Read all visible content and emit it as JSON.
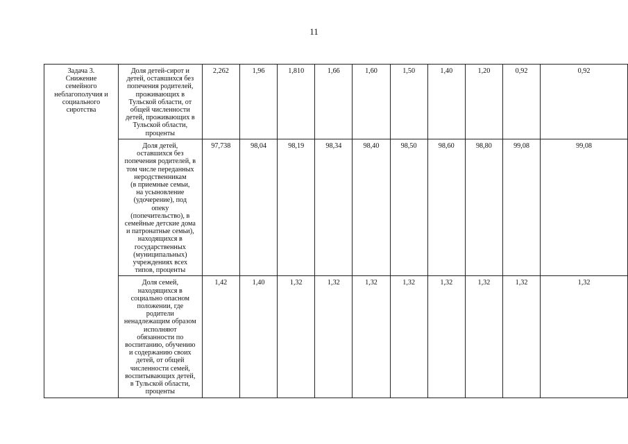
{
  "page_number": "11",
  "task": "Задача 3.\nСнижение\nсемейного\nнеблагополучия и\nсоциального\nсиротства",
  "rows": [
    {
      "indicator": "Доля детей-сирот и\nдетей, оставшихся без\nпопечения родителей,\nпроживающих в\nТульской области, от\nобщей численности\nдетей, проживающих в\nТульской области,\nпроценты",
      "values": [
        "2,262",
        "1,96",
        "1,810",
        "1,66",
        "1,60",
        "1,50",
        "1,40",
        "1,20",
        "0,92",
        "0,92"
      ]
    },
    {
      "indicator": "Доля детей,\nоставшихся без\nпопечения родителей, в\nтом числе переданных\nнеродственникам\n(в приемные семьи,\nна усыновление\n(удочерение), под\nопеку\n(попечительство), в\nсемейные детские дома\nи патронатные семьи),\nнаходящихся в\nгосударственных\n(муниципальных)\nучреждениях всех\nтипов, проценты",
      "values": [
        "97,738",
        "98,04",
        "98,19",
        "98,34",
        "98,40",
        "98,50",
        "98,60",
        "98,80",
        "99,08",
        "99,08"
      ]
    },
    {
      "indicator": "Доля семей,\nнаходящихся в\nсоциально опасном\nположении, где\nродители\nненадлежащим образом\nисполняют\nобязанности по\nвоспитанию, обучению\nи содержанию своих\nдетей, от общей\nчисленности семей,\nвоспитывающих детей,\nв Тульской области,\nпроценты",
      "values": [
        "1,42",
        "1,40",
        "1,32",
        "1,32",
        "1,32",
        "1,32",
        "1,32",
        "1,32",
        "1,32",
        "1,32"
      ]
    }
  ]
}
